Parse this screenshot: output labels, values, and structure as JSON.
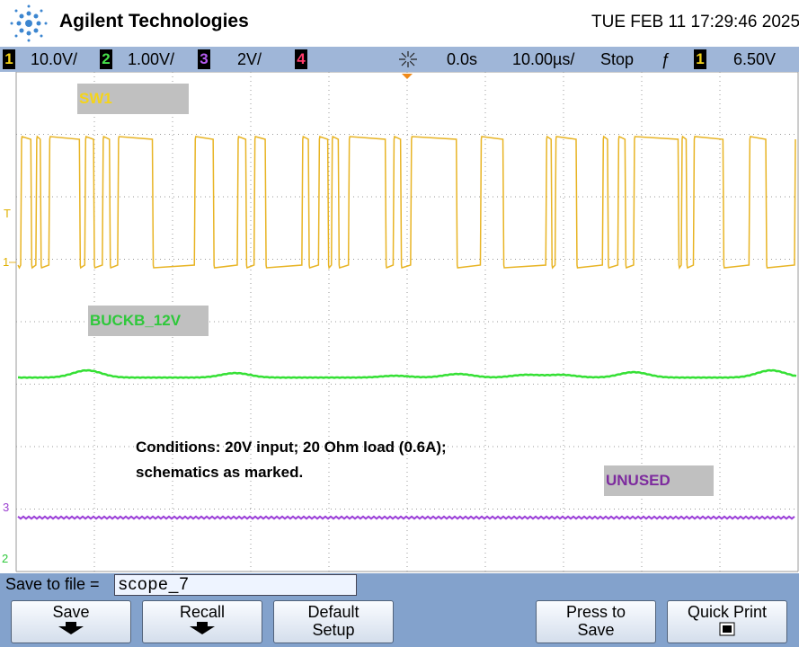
{
  "header": {
    "brand": "Agilent Technologies",
    "datetime": "TUE FEB 11 17:29:46 2025"
  },
  "status_bar": {
    "ch1": {
      "number": "1",
      "scale": "10.0V/"
    },
    "ch2": {
      "number": "2",
      "scale": "1.00V/"
    },
    "ch3": {
      "number": "3",
      "scale": "2V/"
    },
    "ch4": {
      "number": "4"
    },
    "delay": "0.0s",
    "timebase": "10.00µs/",
    "run_state": "Stop",
    "trigger_slope": "ƒ",
    "trigger_source": "1",
    "trigger_level": "6.50V"
  },
  "screen": {
    "labels": [
      "SW1",
      "BUCKB_12V",
      "UNUSED"
    ],
    "note": [
      "Conditions: 20V input; 20 Ohm load (0.6A);",
      "schematics as marked."
    ],
    "markers": [
      "T",
      "1",
      "3",
      "2"
    ]
  },
  "softkeys": {
    "save_to_file_label": "Save to file =",
    "file_name": "scope_7",
    "buttons": [
      [
        "Save"
      ],
      [
        "Recall"
      ],
      [
        "Default",
        "Setup"
      ],
      [
        "Press to",
        "Save"
      ],
      [
        "Quick Print"
      ]
    ]
  }
}
